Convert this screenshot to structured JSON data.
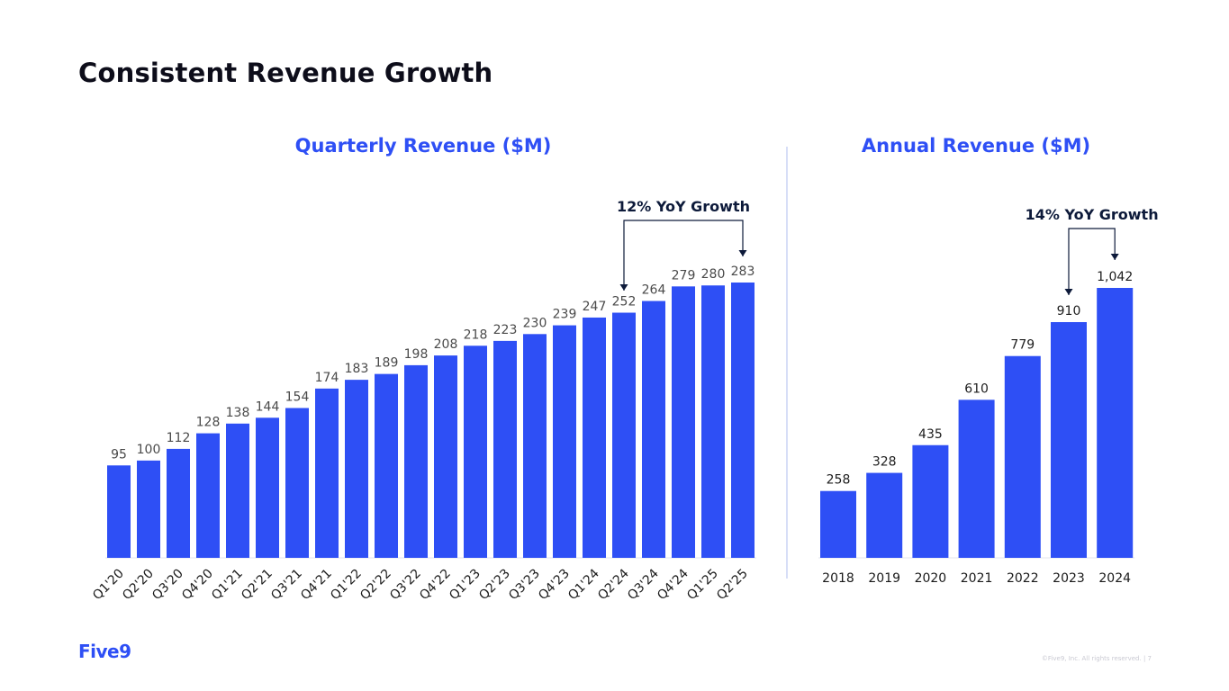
{
  "page_title": "Consistent Revenue Growth",
  "footer": {
    "logo": "Five9",
    "note": "©Five9, Inc. All rights reserved. | 7"
  },
  "colors": {
    "bar": "#2e4ff5",
    "title_accent": "#2e4ff5",
    "annotation": "#0d1a3a"
  },
  "chart_data": [
    {
      "type": "bar",
      "title": "Quarterly Revenue ($M)",
      "categories": [
        "Q1'20",
        "Q2'20",
        "Q3'20",
        "Q4'20",
        "Q1'21",
        "Q2'21",
        "Q3'21",
        "Q4'21",
        "Q1'22",
        "Q2'22",
        "Q3'22",
        "Q4'22",
        "Q1'23",
        "Q2'23",
        "Q3'23",
        "Q4'23",
        "Q1'24",
        "Q2'24",
        "Q3'24",
        "Q4'24",
        "Q1'25",
        "Q2'25"
      ],
      "values": [
        95,
        100,
        112,
        128,
        138,
        144,
        154,
        174,
        183,
        189,
        198,
        208,
        218,
        223,
        230,
        239,
        247,
        252,
        264,
        279,
        280,
        283
      ],
      "labels": [
        "95",
        "100",
        "112",
        "128",
        "138",
        "144",
        "154",
        "174",
        "183",
        "189",
        "198",
        "208",
        "218",
        "223",
        "230",
        "239",
        "247",
        "252",
        "264",
        "279",
        "280",
        "283"
      ],
      "ylim": [
        0,
        283
      ],
      "xlabel": "",
      "ylabel": "",
      "annotation": {
        "text": "12% YoY Growth",
        "from": "Q2'24",
        "to": "Q2'25"
      }
    },
    {
      "type": "bar",
      "title": "Annual Revenue ($M)",
      "categories": [
        "2018",
        "2019",
        "2020",
        "2021",
        "2022",
        "2023",
        "2024"
      ],
      "values": [
        258,
        328,
        435,
        610,
        779,
        910,
        1042
      ],
      "labels": [
        "258",
        "328",
        "435",
        "610",
        "779",
        "910",
        "1,042"
      ],
      "ylim": [
        0,
        1042
      ],
      "xlabel": "",
      "ylabel": "",
      "annotation": {
        "text": "14% YoY Growth",
        "from": "2023",
        "to": "2024"
      }
    }
  ]
}
